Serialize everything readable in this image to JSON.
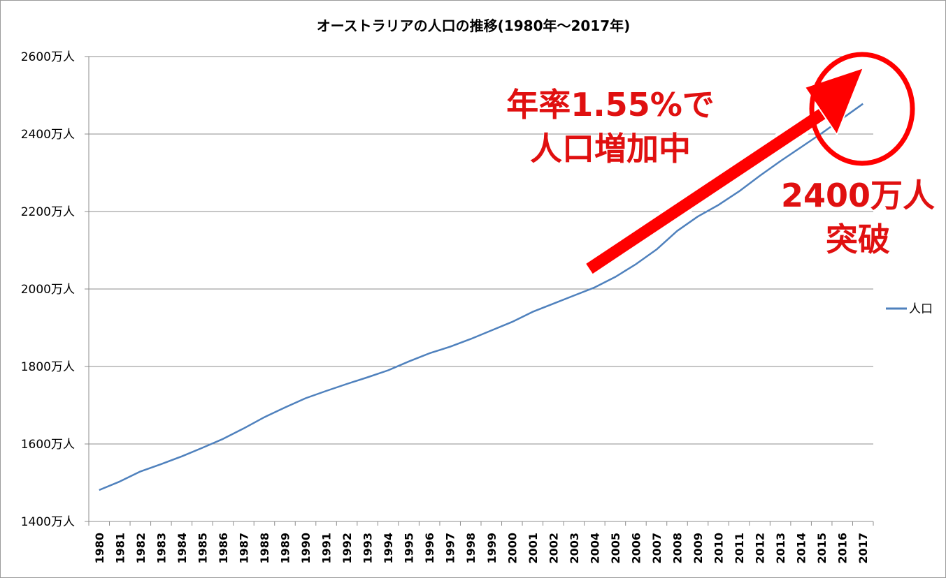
{
  "chart_data": {
    "type": "line",
    "title": "オーストラリアの人口の推移(1980年～2017年)",
    "xlabel": "",
    "ylabel": "",
    "x": [
      "1980",
      "1981",
      "1982",
      "1983",
      "1984",
      "1985",
      "1986",
      "1987",
      "1988",
      "1989",
      "1990",
      "1991",
      "1992",
      "1993",
      "1994",
      "1995",
      "1996",
      "1997",
      "1998",
      "1999",
      "2000",
      "2001",
      "2002",
      "2003",
      "2004",
      "2005",
      "2006",
      "2007",
      "2008",
      "2009",
      "2010",
      "2011",
      "2012",
      "2013",
      "2014",
      "2015",
      "2016",
      "2017"
    ],
    "y_ticks": [
      {
        "value": 1400,
        "label": "1400万人"
      },
      {
        "value": 1600,
        "label": "1600万人"
      },
      {
        "value": 1800,
        "label": "1800万人"
      },
      {
        "value": 2000,
        "label": "2000万人"
      },
      {
        "value": 2200,
        "label": "2200万人"
      },
      {
        "value": 2400,
        "label": "2400万人"
      },
      {
        "value": 2600,
        "label": "2600万人"
      }
    ],
    "ylim": [
      1400,
      2600
    ],
    "grid": true,
    "legend_position": "right",
    "series": [
      {
        "name": "人口",
        "color": "#4f81bd",
        "values": [
          1481,
          1503,
          1529,
          1548,
          1568,
          1590,
          1613,
          1640,
          1669,
          1694,
          1718,
          1737,
          1755,
          1772,
          1790,
          1813,
          1834,
          1851,
          1871,
          1893,
          1915,
          1941,
          1962,
          1983,
          2004,
          2031,
          2064,
          2102,
          2150,
          2187,
          2217,
          2252,
          2292,
          2330,
          2366,
          2402,
          2440,
          2478
        ]
      }
    ],
    "annotations": {
      "growth_line1": "年率1.55%で",
      "growth_line2": "人口増加中",
      "milestone_line1": "2400万人",
      "milestone_line2": "突破"
    },
    "annotation_color": "#ff0000"
  }
}
